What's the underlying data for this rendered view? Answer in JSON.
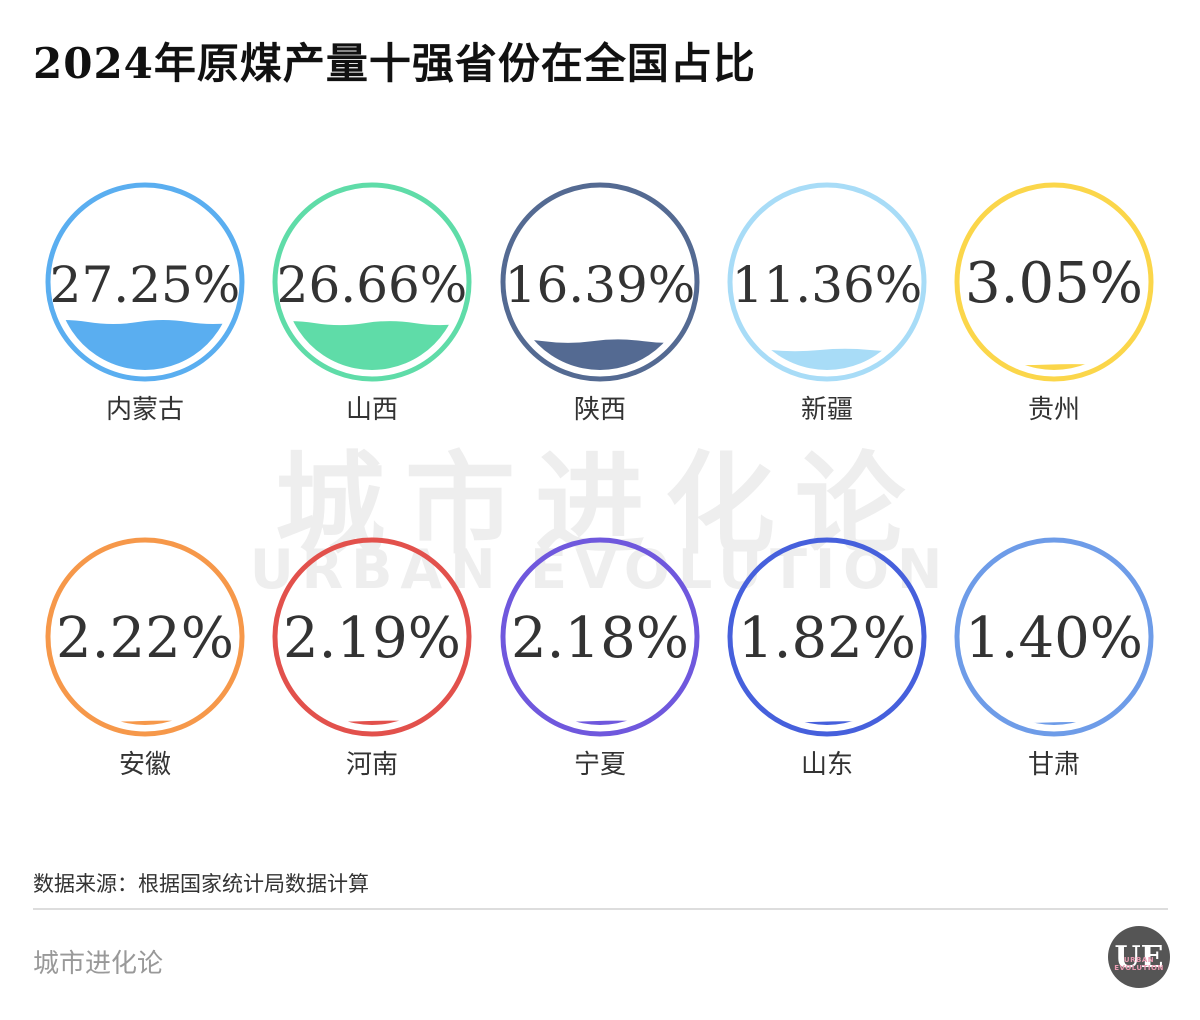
{
  "title": "2024年原煤产量十强省份在全国占比",
  "watermark": {
    "cn": "城市进化论",
    "en": "URBAN EVOLUTION"
  },
  "source": "数据来源：根据国家统计局数据计算",
  "footer": {
    "brand": "城市进化论",
    "logo_text": "UE",
    "logo_sub": "URBAN EVOLUTION"
  },
  "chart_data": {
    "type": "liquid-fill",
    "title": "2024年原煤产量十强省份在全国占比",
    "categories": [
      "内蒙古",
      "山西",
      "陕西",
      "新疆",
      "贵州",
      "安徽",
      "河南",
      "宁夏",
      "山东",
      "甘肃"
    ],
    "values": [
      27.25,
      26.66,
      16.39,
      11.36,
      3.05,
      2.22,
      2.19,
      2.18,
      1.82,
      1.4
    ],
    "labels": [
      "27.25%",
      "26.66%",
      "16.39%",
      "11.36%",
      "3.05%",
      "2.22%",
      "2.19%",
      "2.18%",
      "1.82%",
      "1.40%"
    ],
    "unit": "%",
    "colors": [
      "#5aaef0",
      "#5fdca8",
      "#546a92",
      "#a8dcf7",
      "#fbd64a",
      "#f6984a",
      "#e2514c",
      "#6f58dd",
      "#4660dc",
      "#6e9ce8"
    ]
  }
}
